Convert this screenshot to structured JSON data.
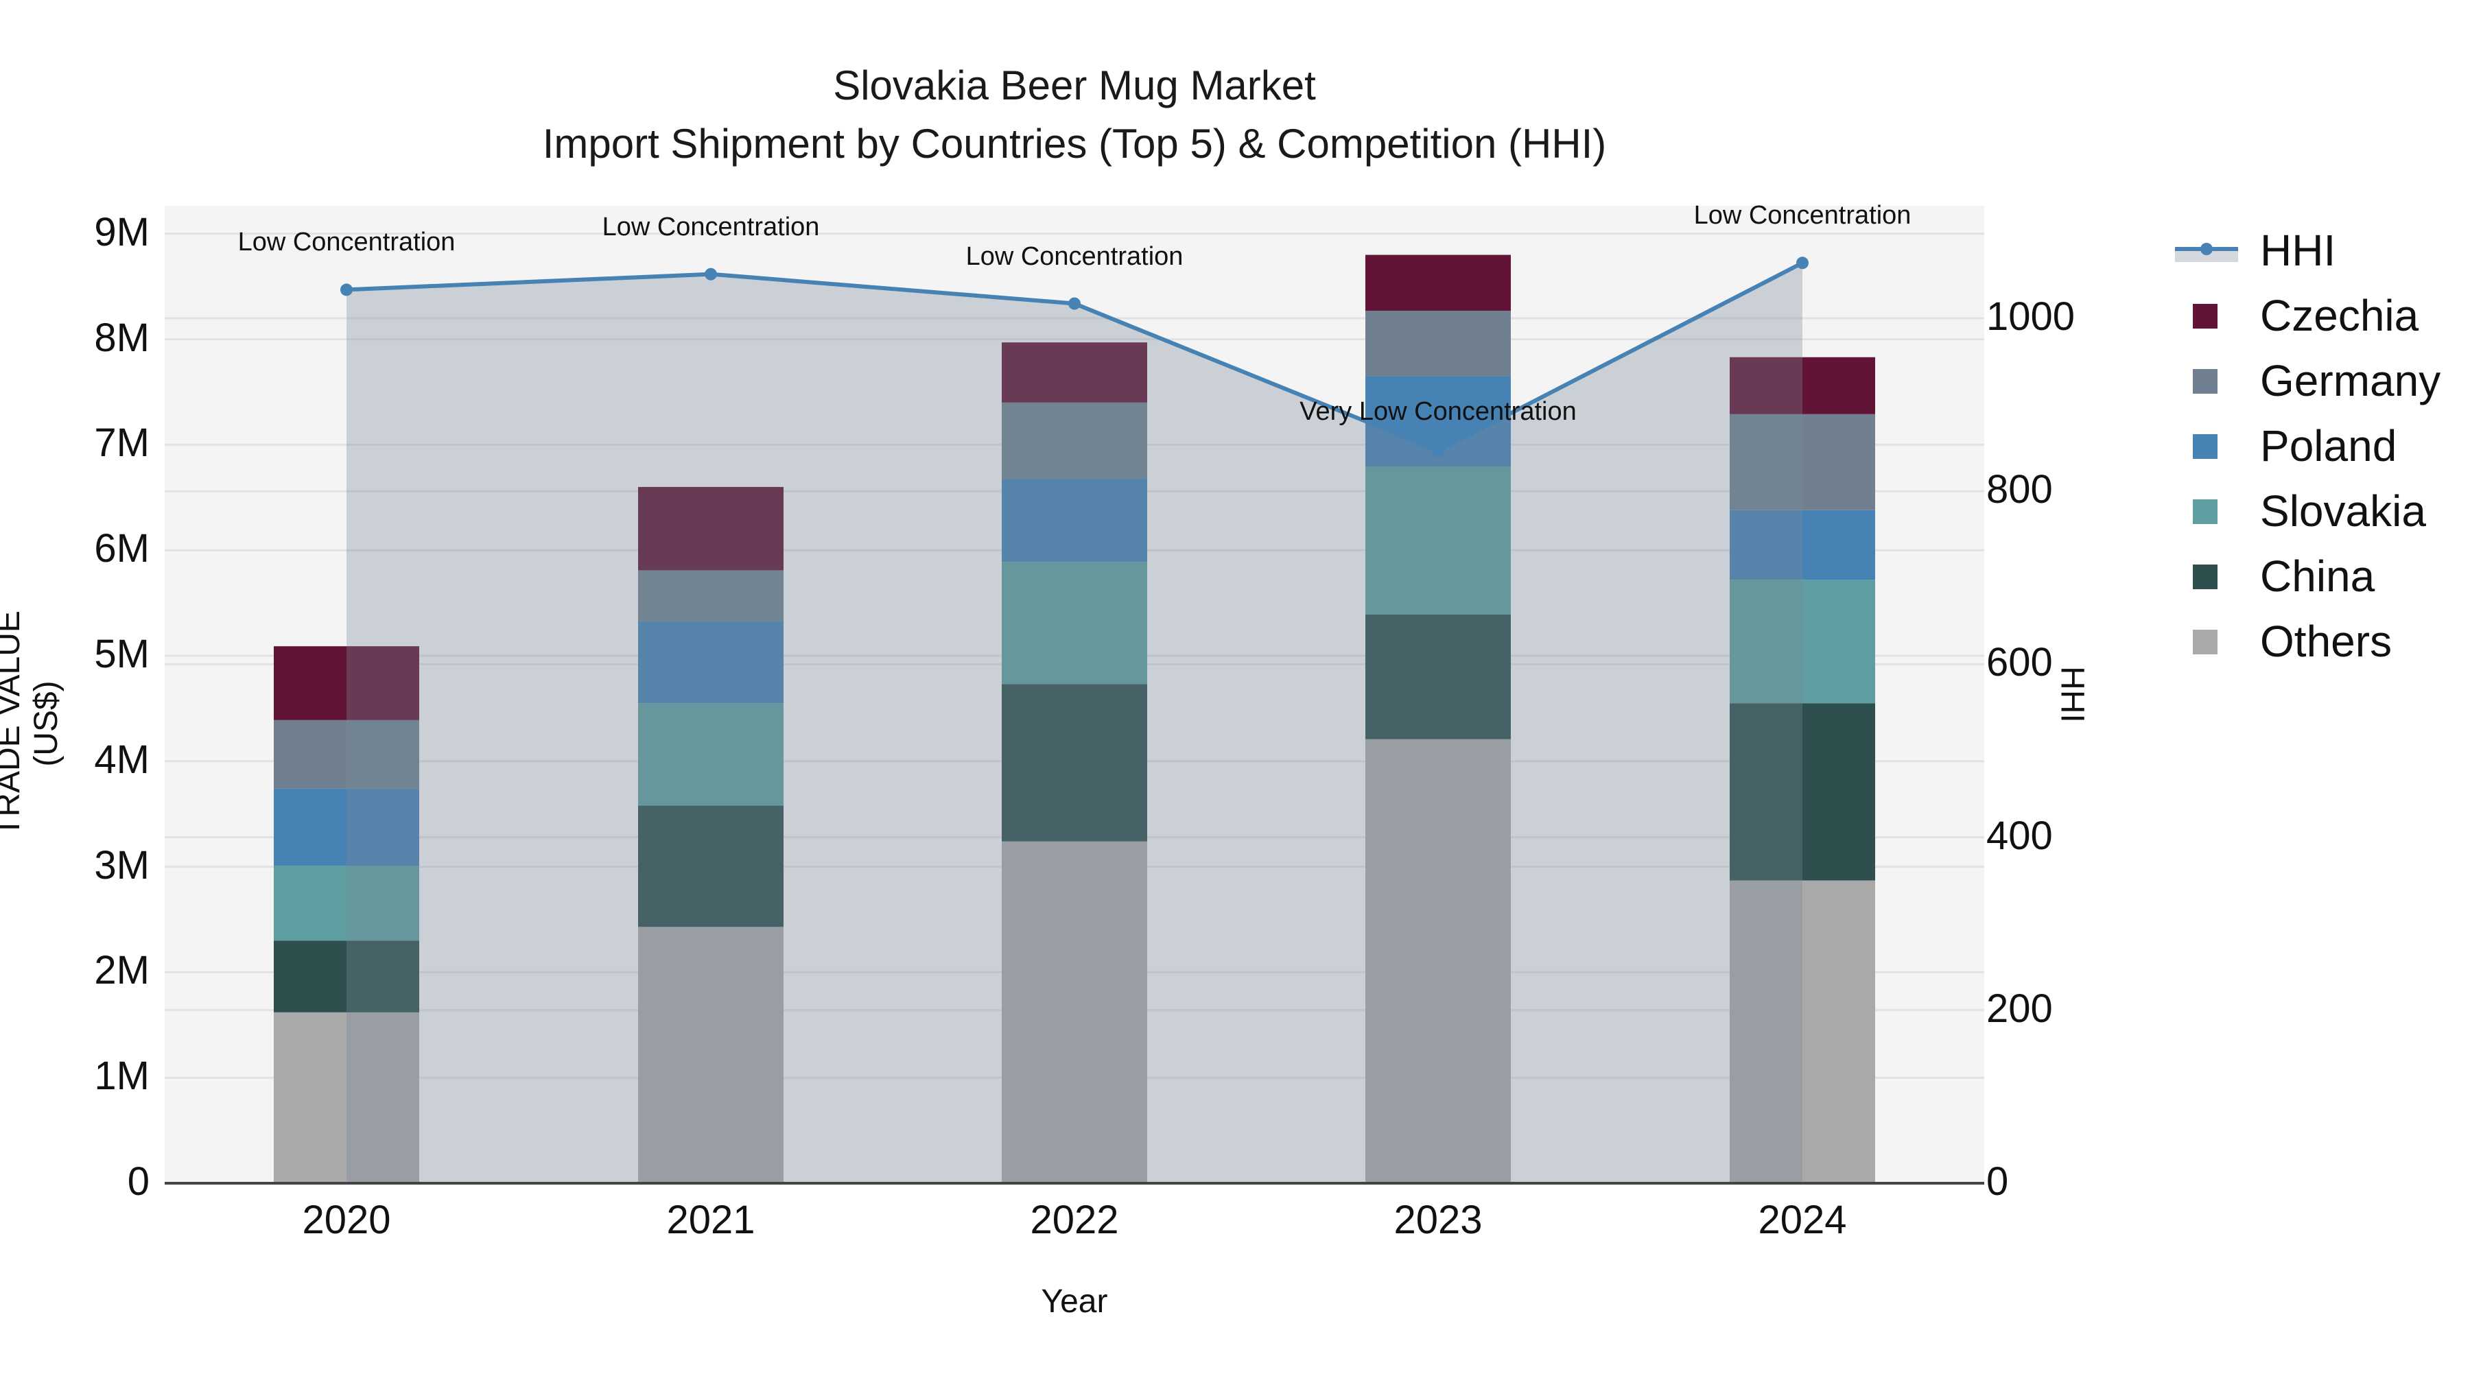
{
  "title": {
    "line1": "Slovakia Beer Mug Market",
    "line2": "Import Shipment by Countries (Top 5) & Competition (HHI)"
  },
  "axes": {
    "y_left_title": "TRADE VALUE (US$)",
    "y_right_title": "HHI",
    "x_title": "Year",
    "y_left_ticks": [
      "0",
      "1M",
      "2M",
      "3M",
      "4M",
      "5M",
      "6M",
      "7M",
      "8M",
      "9M"
    ],
    "y_right_ticks": [
      "0",
      "200",
      "400",
      "600",
      "800",
      "1000"
    ],
    "x_ticks": [
      "2020",
      "2021",
      "2022",
      "2023",
      "2024"
    ]
  },
  "legend": [
    {
      "label": "HHI",
      "type": "line",
      "color": "#4682B4"
    },
    {
      "label": "Czechia",
      "type": "bar",
      "color": "#621437"
    },
    {
      "label": "Germany",
      "type": "bar",
      "color": "#708090"
    },
    {
      "label": "Poland",
      "type": "bar",
      "color": "#4682B4"
    },
    {
      "label": "Slovakia",
      "type": "bar",
      "color": "#5F9EA0"
    },
    {
      "label": "China",
      "type": "bar",
      "color": "#2F4F4F"
    },
    {
      "label": "Others",
      "type": "bar",
      "color": "#A9A9A9"
    }
  ],
  "annotations": [
    {
      "year": "2020",
      "text": "Low Concentration"
    },
    {
      "year": "2021",
      "text": "Low Concentration"
    },
    {
      "year": "2022",
      "text": "Low Concentration"
    },
    {
      "year": "2023",
      "text": "Very Low Concentration"
    },
    {
      "year": "2024",
      "text": "Low Concentration"
    }
  ],
  "chart_data": {
    "type": "bar",
    "stacked": true,
    "title": "Slovakia Beer Mug Market — Import Shipment by Countries (Top 5) & Competition (HHI)",
    "xlabel": "Year",
    "ylabel": "TRADE VALUE (US$)",
    "y2label": "HHI",
    "categories": [
      "2020",
      "2021",
      "2022",
      "2023",
      "2024"
    ],
    "ylim": [
      0,
      9260000
    ],
    "y2lim": [
      0,
      1130
    ],
    "grid": true,
    "legend_position": "right",
    "series": [
      {
        "name": "Others",
        "color": "#A9A9A9",
        "values": [
          1620000,
          2430000,
          3240000,
          4210000,
          2870000
        ]
      },
      {
        "name": "China",
        "color": "#2F4F4F",
        "values": [
          680000,
          1150000,
          1490000,
          1180000,
          1680000
        ]
      },
      {
        "name": "Slovakia",
        "color": "#5F9EA0",
        "values": [
          710000,
          970000,
          1160000,
          1400000,
          1170000
        ]
      },
      {
        "name": "Poland",
        "color": "#4682B4",
        "values": [
          730000,
          780000,
          790000,
          860000,
          660000
        ]
      },
      {
        "name": "Germany",
        "color": "#708090",
        "values": [
          650000,
          480000,
          720000,
          620000,
          910000
        ]
      },
      {
        "name": "Czechia",
        "color": "#621437",
        "values": [
          700000,
          790000,
          570000,
          530000,
          540000
        ]
      }
    ],
    "totals": [
      5090000,
      6600000,
      7970000,
      8800000,
      7830000
    ],
    "line_series": {
      "name": "HHI",
      "axis": "right",
      "type": "line+area",
      "color": "#4682B4",
      "values": [
        1033,
        1051,
        1017,
        847,
        1064
      ],
      "labels": [
        "Low Concentration",
        "Low Concentration",
        "Low Concentration",
        "Very Low Concentration",
        "Low Concentration"
      ]
    }
  }
}
